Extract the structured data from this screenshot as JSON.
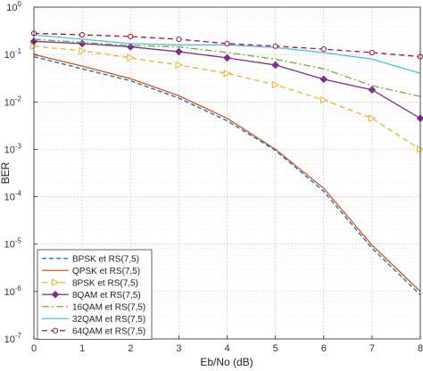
{
  "chart_data": {
    "type": "line",
    "title": "",
    "xlabel": "Eb/No (dB)",
    "ylabel": "BER",
    "xlim": [
      0,
      8
    ],
    "ylim": [
      1e-07,
      1
    ],
    "yscale": "log",
    "grid": true,
    "legend_position": "bottom-left",
    "x_ticks": [
      0,
      1,
      2,
      3,
      4,
      5,
      6,
      7,
      8
    ],
    "y_tick_exponents": [
      0,
      -1,
      -2,
      -3,
      -4,
      -5,
      -6,
      -7
    ],
    "y_tick_base": "10",
    "x": [
      0,
      1,
      2,
      3,
      4,
      5,
      6,
      7,
      8
    ],
    "series": [
      {
        "name": "BPSK et RS(7,5)",
        "color": "#0072BD",
        "dash": "5,3",
        "marker": "none",
        "values": [
          0.09,
          0.05,
          0.028,
          0.012,
          0.004,
          0.00095,
          0.00013,
          8.2e-06,
          8.5e-07
        ]
      },
      {
        "name": "QPSK et RS(7,5)",
        "color": "#D95319",
        "dash": "",
        "marker": "none",
        "values": [
          0.1,
          0.057,
          0.031,
          0.0135,
          0.0045,
          0.001,
          0.00015,
          9.5e-06,
          1e-06
        ]
      },
      {
        "name": "8PSK et RS(7,5)",
        "color": "#EDB120",
        "dash": "6,4",
        "marker": "triangle-right",
        "values": [
          0.15,
          0.12,
          0.085,
          0.06,
          0.04,
          0.023,
          0.011,
          0.0045,
          0.001
        ]
      },
      {
        "name": "8QAM et RS(7,5)",
        "color": "#7E2F8E",
        "dash": "",
        "marker": "diamond",
        "values": [
          0.19,
          0.17,
          0.145,
          0.115,
          0.085,
          0.06,
          0.03,
          0.018,
          0.0045
        ]
      },
      {
        "name": "16QAM et RS(7,5)",
        "color": "#77AC30",
        "dash": "8,3,2,3",
        "marker": "none",
        "values": [
          0.21,
          0.18,
          0.155,
          0.145,
          0.11,
          0.08,
          0.05,
          0.022,
          0.013
        ]
      },
      {
        "name": "32QAM et RS(7,5)",
        "color": "#4DBEEE",
        "dash": "",
        "marker": "none",
        "values": [
          0.26,
          0.21,
          0.17,
          0.16,
          0.16,
          0.14,
          0.11,
          0.08,
          0.04
        ]
      },
      {
        "name": "64QAM et RS(7,5)",
        "color": "#A2142F",
        "dash": "6,4",
        "marker": "circle",
        "values": [
          0.28,
          0.26,
          0.24,
          0.21,
          0.17,
          0.15,
          0.13,
          0.11,
          0.09
        ]
      }
    ]
  }
}
